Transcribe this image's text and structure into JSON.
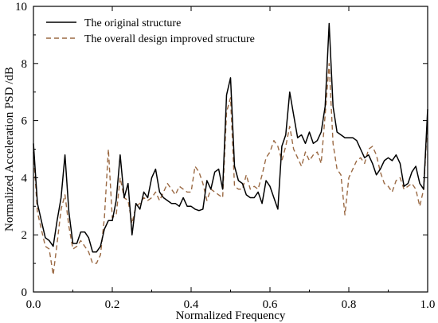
{
  "chart_data": {
    "type": "line",
    "title": "",
    "xlabel": "Normalized Frequency",
    "ylabel": "Normalized Acceleration PSD /dB",
    "xlim": [
      0,
      1.0
    ],
    "ylim": [
      0,
      10
    ],
    "xticks": [
      0.0,
      0.2,
      0.4,
      0.6,
      0.8,
      1.0
    ],
    "xtick_labels": [
      "0.0",
      "0.2",
      "0.4",
      "0.6",
      "0.8",
      "1.0"
    ],
    "yticks": [
      0,
      2,
      4,
      6,
      8,
      10
    ],
    "ytick_labels": [
      "0",
      "2",
      "4",
      "6",
      "8",
      "10"
    ],
    "grid": false,
    "legend_position": "top-left",
    "series": [
      {
        "name": "The original structure",
        "color": "#000000",
        "dash": "solid",
        "x": [
          0.0,
          0.01,
          0.02,
          0.03,
          0.04,
          0.05,
          0.06,
          0.07,
          0.08,
          0.09,
          0.1,
          0.11,
          0.12,
          0.13,
          0.14,
          0.15,
          0.16,
          0.17,
          0.18,
          0.19,
          0.2,
          0.21,
          0.22,
          0.23,
          0.24,
          0.25,
          0.26,
          0.27,
          0.28,
          0.29,
          0.3,
          0.31,
          0.32,
          0.33,
          0.34,
          0.35,
          0.36,
          0.37,
          0.38,
          0.39,
          0.4,
          0.41,
          0.42,
          0.43,
          0.44,
          0.45,
          0.46,
          0.47,
          0.48,
          0.49,
          0.5,
          0.51,
          0.52,
          0.53,
          0.54,
          0.55,
          0.56,
          0.57,
          0.58,
          0.59,
          0.6,
          0.61,
          0.62,
          0.63,
          0.64,
          0.65,
          0.66,
          0.67,
          0.68,
          0.69,
          0.7,
          0.71,
          0.72,
          0.73,
          0.74,
          0.75,
          0.76,
          0.77,
          0.78,
          0.79,
          0.8,
          0.81,
          0.82,
          0.83,
          0.84,
          0.85,
          0.86,
          0.87,
          0.88,
          0.89,
          0.9,
          0.91,
          0.92,
          0.93,
          0.94,
          0.95,
          0.96,
          0.97,
          0.98,
          0.99,
          1.0
        ],
        "y": [
          5.2,
          3.1,
          2.5,
          1.9,
          1.8,
          1.6,
          2.5,
          3.3,
          4.8,
          2.8,
          1.7,
          1.7,
          2.1,
          2.1,
          1.9,
          1.4,
          1.4,
          1.6,
          2.2,
          2.5,
          2.5,
          3.2,
          4.8,
          3.3,
          3.8,
          2.0,
          3.1,
          2.9,
          3.5,
          3.3,
          4.0,
          4.3,
          3.5,
          3.3,
          3.2,
          3.1,
          3.1,
          3.0,
          3.3,
          3.0,
          3.0,
          2.9,
          2.85,
          2.9,
          3.9,
          3.6,
          4.2,
          4.3,
          3.6,
          6.9,
          7.5,
          4.4,
          3.9,
          3.8,
          3.4,
          3.3,
          3.3,
          3.5,
          3.1,
          3.9,
          3.7,
          3.3,
          2.9,
          5.1,
          5.5,
          7.0,
          6.2,
          5.4,
          5.5,
          5.2,
          5.6,
          5.2,
          5.3,
          5.6,
          6.5,
          9.4,
          6.5,
          5.6,
          5.5,
          5.4,
          5.4,
          5.4,
          5.3,
          5.0,
          4.7,
          4.8,
          4.5,
          4.1,
          4.3,
          4.6,
          4.7,
          4.6,
          4.8,
          4.5,
          3.7,
          3.8,
          4.2,
          4.4,
          3.8,
          3.6,
          6.4
        ]
      },
      {
        "name": "The overall design improved structure",
        "color": "#9b6a44",
        "dash": "dashed",
        "x": [
          0.0,
          0.01,
          0.02,
          0.03,
          0.04,
          0.05,
          0.06,
          0.07,
          0.08,
          0.09,
          0.1,
          0.11,
          0.12,
          0.13,
          0.14,
          0.15,
          0.16,
          0.17,
          0.18,
          0.19,
          0.2,
          0.21,
          0.22,
          0.23,
          0.24,
          0.25,
          0.26,
          0.27,
          0.28,
          0.29,
          0.3,
          0.31,
          0.32,
          0.33,
          0.34,
          0.35,
          0.36,
          0.37,
          0.38,
          0.39,
          0.4,
          0.41,
          0.42,
          0.43,
          0.44,
          0.45,
          0.46,
          0.47,
          0.48,
          0.49,
          0.5,
          0.51,
          0.52,
          0.53,
          0.54,
          0.55,
          0.56,
          0.57,
          0.58,
          0.59,
          0.6,
          0.61,
          0.62,
          0.63,
          0.64,
          0.65,
          0.66,
          0.67,
          0.68,
          0.69,
          0.7,
          0.71,
          0.72,
          0.73,
          0.74,
          0.75,
          0.76,
          0.77,
          0.78,
          0.79,
          0.8,
          0.81,
          0.82,
          0.83,
          0.84,
          0.85,
          0.86,
          0.87,
          0.88,
          0.89,
          0.9,
          0.91,
          0.92,
          0.93,
          0.94,
          0.95,
          0.96,
          0.97,
          0.98,
          0.99,
          1.0
        ],
        "y": [
          4.9,
          2.8,
          2.2,
          1.6,
          1.5,
          0.6,
          1.7,
          2.9,
          3.4,
          2.3,
          1.5,
          1.6,
          1.8,
          1.6,
          1.4,
          1.0,
          1.0,
          1.3,
          2.6,
          5.0,
          2.6,
          2.7,
          4.0,
          3.3,
          3.2,
          2.4,
          3.0,
          3.1,
          3.3,
          3.2,
          3.3,
          3.5,
          3.2,
          3.5,
          3.8,
          3.6,
          3.4,
          3.7,
          3.6,
          3.5,
          3.5,
          4.4,
          4.2,
          3.8,
          3.2,
          3.6,
          3.5,
          3.4,
          3.3,
          6.3,
          6.8,
          3.7,
          3.6,
          3.6,
          4.1,
          3.6,
          3.7,
          3.6,
          4.1,
          4.7,
          4.9,
          5.3,
          5.1,
          4.6,
          5.1,
          5.8,
          5.0,
          4.7,
          4.4,
          4.9,
          4.6,
          4.8,
          4.9,
          4.5,
          6.2,
          8.0,
          5.2,
          4.3,
          4.1,
          2.7,
          4.0,
          4.3,
          4.6,
          4.7,
          4.5,
          5.0,
          5.1,
          4.8,
          4.2,
          3.8,
          3.7,
          3.5,
          3.9,
          4.0,
          3.6,
          3.7,
          3.8,
          3.6,
          3.0,
          3.6,
          6.0
        ]
      }
    ]
  }
}
